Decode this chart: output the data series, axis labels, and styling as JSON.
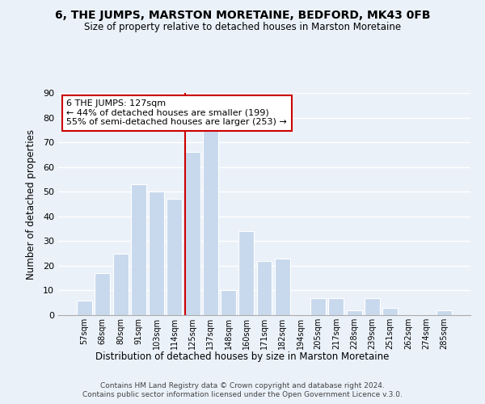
{
  "title": "6, THE JUMPS, MARSTON MORETAINE, BEDFORD, MK43 0FB",
  "subtitle": "Size of property relative to detached houses in Marston Moretaine",
  "xlabel": "Distribution of detached houses by size in Marston Moretaine",
  "ylabel": "Number of detached properties",
  "bar_color": "#c8d9ed",
  "bar_edge_color": "#ffffff",
  "background_color": "#eaf1f9",
  "grid_color": "#ffffff",
  "categories": [
    "57sqm",
    "68sqm",
    "80sqm",
    "91sqm",
    "103sqm",
    "114sqm",
    "125sqm",
    "137sqm",
    "148sqm",
    "160sqm",
    "171sqm",
    "182sqm",
    "194sqm",
    "205sqm",
    "217sqm",
    "228sqm",
    "239sqm",
    "251sqm",
    "262sqm",
    "274sqm",
    "285sqm"
  ],
  "values": [
    6,
    17,
    25,
    53,
    50,
    47,
    66,
    75,
    10,
    34,
    22,
    23,
    0,
    7,
    7,
    2,
    7,
    3,
    0,
    0,
    2
  ],
  "vline_x_index": 6,
  "vline_color": "#cc0000",
  "annotation_title": "6 THE JUMPS: 127sqm",
  "annotation_line1": "← 44% of detached houses are smaller (199)",
  "annotation_line2": "55% of semi-detached houses are larger (253) →",
  "annotation_box_color": "#ffffff",
  "annotation_box_edge": "#cc0000",
  "ylim": [
    0,
    90
  ],
  "yticks": [
    0,
    10,
    20,
    30,
    40,
    50,
    60,
    70,
    80,
    90
  ],
  "footer1": "Contains HM Land Registry data © Crown copyright and database right 2024.",
  "footer2": "Contains public sector information licensed under the Open Government Licence v.3.0."
}
